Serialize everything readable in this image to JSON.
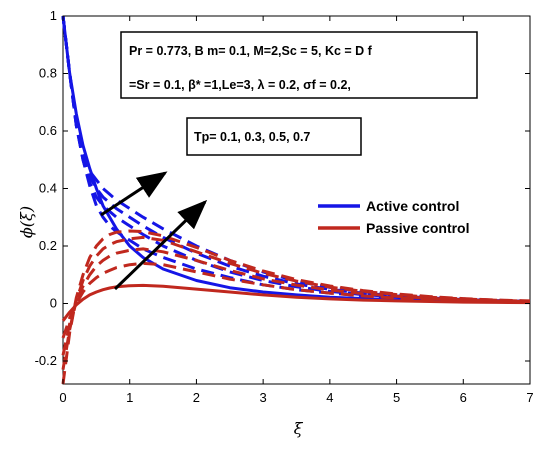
{
  "chart_data": {
    "type": "line",
    "xlabel": "ξ",
    "ylabel": "ϕ(ξ)",
    "xlim": [
      0,
      7
    ],
    "ylim": [
      -0.28,
      1.0
    ],
    "xticks": [
      "0",
      "1",
      "2",
      "3",
      "4",
      "5",
      "6",
      "7"
    ],
    "yticks": [
      "-0.2",
      "0",
      "0.2",
      "0.4",
      "0.6",
      "0.8",
      "1"
    ],
    "parameters_box": {
      "line1": "Pr = 0.773, B m= 0.1, M=2,Sc = 5, Kc = D f",
      "line2": "=Sr = 0.1,  β* =1,Le=3, λ = 0.2, σf = 0.2,"
    },
    "tp_box": "Tp= 0.1, 0.3, 0.5, 0.7",
    "legend": {
      "position": "right",
      "entries": [
        {
          "label": "Active control",
          "color": "#1515e6"
        },
        {
          "label": "Passive control",
          "color": "#c0281e"
        }
      ]
    },
    "x": [
      0,
      0.1,
      0.2,
      0.3,
      0.4,
      0.5,
      0.6,
      0.7,
      0.8,
      1.0,
      1.2,
      1.5,
      2.0,
      2.5,
      3.0,
      3.5,
      4.0,
      4.5,
      5.0,
      5.5,
      6.0,
      6.5,
      7.0
    ],
    "series": [
      {
        "group": "Active control",
        "style": "solid",
        "color": "#1515e6",
        "values": [
          1.0,
          0.8,
          0.66,
          0.55,
          0.47,
          0.4,
          0.34,
          0.3,
          0.26,
          0.2,
          0.16,
          0.12,
          0.08,
          0.055,
          0.04,
          0.03,
          0.022,
          0.017,
          0.013,
          0.01,
          0.008,
          0.006,
          0.005
        ]
      },
      {
        "group": "Active control",
        "style": "dashed",
        "color": "#1515e6",
        "values": [
          1.0,
          0.8,
          0.62,
          0.5,
          0.41,
          0.34,
          0.3,
          0.27,
          0.25,
          0.22,
          0.19,
          0.16,
          0.12,
          0.09,
          0.065,
          0.048,
          0.036,
          0.027,
          0.02,
          0.015,
          0.011,
          0.008,
          0.006
        ]
      },
      {
        "group": "Active control",
        "style": "dashed",
        "color": "#1515e6",
        "values": [
          1.0,
          0.8,
          0.62,
          0.5,
          0.42,
          0.37,
          0.34,
          0.32,
          0.3,
          0.27,
          0.24,
          0.2,
          0.15,
          0.11,
          0.08,
          0.058,
          0.042,
          0.031,
          0.023,
          0.017,
          0.012,
          0.009,
          0.007
        ]
      },
      {
        "group": "Active control",
        "style": "dashed",
        "color": "#1515e6",
        "values": [
          1.0,
          0.8,
          0.62,
          0.51,
          0.44,
          0.4,
          0.37,
          0.35,
          0.33,
          0.3,
          0.27,
          0.23,
          0.175,
          0.13,
          0.095,
          0.068,
          0.049,
          0.036,
          0.026,
          0.019,
          0.014,
          0.01,
          0.007
        ]
      },
      {
        "group": "Active control",
        "style": "dashed",
        "color": "#1515e6",
        "values": [
          1.0,
          0.8,
          0.63,
          0.52,
          0.46,
          0.43,
          0.4,
          0.38,
          0.36,
          0.33,
          0.3,
          0.26,
          0.2,
          0.15,
          0.11,
          0.078,
          0.056,
          0.041,
          0.03,
          0.022,
          0.016,
          0.011,
          0.008
        ]
      },
      {
        "group": "Passive control",
        "style": "solid",
        "color": "#c0281e",
        "values": [
          -0.06,
          -0.03,
          -0.005,
          0.015,
          0.03,
          0.04,
          0.048,
          0.054,
          0.058,
          0.062,
          0.063,
          0.06,
          0.05,
          0.04,
          0.03,
          0.022,
          0.016,
          0.012,
          0.009,
          0.007,
          0.005,
          0.004,
          0.003
        ]
      },
      {
        "group": "Passive control",
        "style": "dashed",
        "color": "#c0281e",
        "values": [
          -0.12,
          -0.05,
          0.0,
          0.04,
          0.07,
          0.09,
          0.105,
          0.115,
          0.125,
          0.135,
          0.14,
          0.135,
          0.11,
          0.085,
          0.065,
          0.048,
          0.036,
          0.026,
          0.019,
          0.014,
          0.01,
          0.007,
          0.005
        ]
      },
      {
        "group": "Passive control",
        "style": "dashed",
        "color": "#c0281e",
        "values": [
          -0.18,
          -0.07,
          0.01,
          0.06,
          0.1,
          0.13,
          0.15,
          0.165,
          0.175,
          0.185,
          0.19,
          0.18,
          0.15,
          0.115,
          0.086,
          0.064,
          0.047,
          0.034,
          0.025,
          0.018,
          0.013,
          0.009,
          0.007
        ]
      },
      {
        "group": "Passive control",
        "style": "dashed",
        "color": "#c0281e",
        "values": [
          -0.23,
          -0.09,
          0.01,
          0.08,
          0.13,
          0.165,
          0.19,
          0.205,
          0.215,
          0.225,
          0.23,
          0.22,
          0.18,
          0.14,
          0.105,
          0.078,
          0.057,
          0.042,
          0.031,
          0.022,
          0.016,
          0.011,
          0.008
        ]
      },
      {
        "group": "Passive control",
        "style": "dashed",
        "color": "#c0281e",
        "values": [
          -0.28,
          -0.1,
          0.02,
          0.1,
          0.16,
          0.2,
          0.225,
          0.24,
          0.248,
          0.252,
          0.25,
          0.235,
          0.195,
          0.15,
          0.113,
          0.083,
          0.061,
          0.045,
          0.033,
          0.024,
          0.017,
          0.012,
          0.009
        ]
      }
    ]
  }
}
